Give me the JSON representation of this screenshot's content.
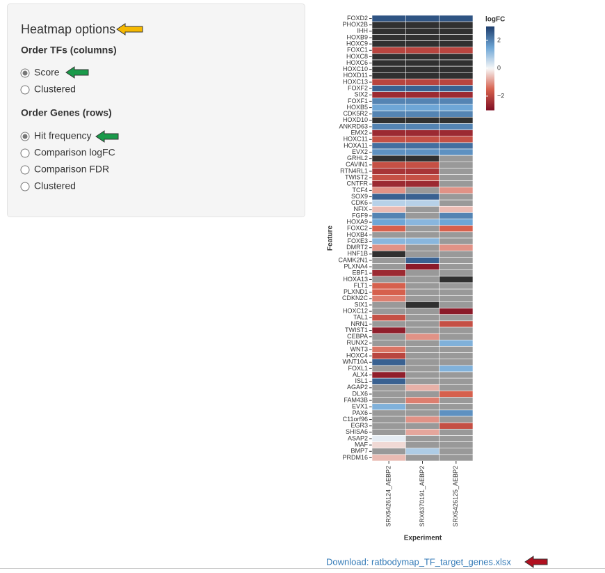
{
  "panel": {
    "title": "Heatmap options",
    "order_tfs": {
      "label": "Order TFs (columns)",
      "options": [
        "Score",
        "Clustered"
      ],
      "selected": 0
    },
    "order_genes": {
      "label": "Order Genes (rows)",
      "options": [
        "Hit frequency",
        "Comparison logFC",
        "Comparison FDR",
        "Clustered"
      ],
      "selected": 0
    }
  },
  "chart_data": {
    "type": "heatmap",
    "x_label": "Experiment",
    "y_label": "Feature",
    "columns": [
      "SRX5426124_AEBP2",
      "SRX6370191_AEBP2",
      "SRX5426125_AEBP2"
    ],
    "rows": [
      "FOXD2",
      "PHOX2B",
      "IHH",
      "HOXB9",
      "HOXC9",
      "FOXC1",
      "HOXC8",
      "HOXC6",
      "HOXC10",
      "HOXD11",
      "HOXC13",
      "FOXF2",
      "SIX2",
      "FOXF1",
      "HOXB5",
      "CDK5R2",
      "HOXD10",
      "ANKRD63",
      "EMX2",
      "HOXC11",
      "HOXA11",
      "EVX2",
      "GRHL2",
      "CAVIN1",
      "RTN4RL1",
      "TWIST2",
      "CNTFR",
      "TCF4",
      "SOX9",
      "CDK6",
      "NFIX",
      "FGF9",
      "HOXA9",
      "FOXC2",
      "HOXB4",
      "FOXE3",
      "DMRT2",
      "HNF1B",
      "CAMK2N1",
      "PLXNA4",
      "EBF1",
      "HOXA13",
      "FLT1",
      "PLXND1",
      "CDKN2C",
      "SIX1",
      "HOXC12",
      "TAL1",
      "NRN1",
      "TWIST1",
      "CEBPA",
      "RUNX2",
      "WNT3",
      "HOXC4",
      "WNT10A",
      "FOXL1",
      "ALX4",
      "ISL1",
      "AGAP2",
      "DLX6",
      "FAM43B",
      "EVX1",
      "PAX6",
      "C11orf96",
      "EGR3",
      "SHISA6",
      "ASAP2",
      "MAF",
      "BMP7",
      "PRDM16"
    ],
    "values": [
      [
        2.7,
        2.7,
        2.7
      ],
      [
        null,
        null,
        null
      ],
      [
        null,
        null,
        null
      ],
      [
        null,
        null,
        null
      ],
      [
        null,
        null,
        null
      ],
      [
        -2,
        -2,
        -2
      ],
      [
        null,
        null,
        null
      ],
      [
        null,
        null,
        null
      ],
      [
        null,
        null,
        null
      ],
      [
        null,
        null,
        null
      ],
      [
        -2,
        -2,
        -2
      ],
      [
        2.5,
        2.5,
        2.5
      ],
      [
        -2.5,
        -2.5,
        -2.5
      ],
      [
        2,
        2,
        2
      ],
      [
        1.5,
        1.5,
        1.5
      ],
      [
        2,
        2,
        2
      ],
      [
        null,
        null,
        null
      ],
      [
        2,
        2,
        2
      ],
      [
        -2.5,
        -2.5,
        -2.5
      ],
      [
        -1.8,
        -1.8,
        -1.8
      ],
      [
        2.3,
        2.3,
        2.3
      ],
      [
        1.8,
        1.8,
        1.8
      ],
      [
        null,
        null,
        null
      ],
      [
        -1.8,
        -1.8,
        null
      ],
      [
        -2.3,
        -2.3,
        null
      ],
      [
        -1.8,
        -1.8,
        null
      ],
      [
        -2.5,
        -2.5,
        null
      ],
      [
        -1,
        null,
        -1
      ],
      [
        2.5,
        2.5,
        null
      ],
      [
        0.7,
        0.7,
        null
      ],
      [
        -0.6,
        null,
        -0.6
      ],
      [
        2,
        null,
        2
      ],
      [
        1.5,
        1.2,
        1.5
      ],
      [
        -1.5,
        null,
        -1.5
      ],
      [
        null,
        null,
        null
      ],
      [
        1.2,
        1.2,
        null
      ],
      [
        -1,
        null,
        -1
      ],
      [
        null,
        null,
        null
      ],
      [
        null,
        2.5,
        null
      ],
      [
        null,
        -2.8,
        null
      ],
      [
        -2.5,
        null,
        null
      ],
      [
        null,
        null,
        null
      ],
      [
        -1.5,
        null,
        null
      ],
      [
        -1.5,
        null,
        null
      ],
      [
        -1.2,
        null,
        null
      ],
      [
        null,
        null,
        null
      ],
      [
        null,
        null,
        -2.8
      ],
      [
        -1.8,
        null,
        null
      ],
      [
        null,
        null,
        -1.8
      ],
      [
        -2.7,
        null,
        null
      ],
      [
        null,
        -1,
        null
      ],
      [
        null,
        null,
        1.3
      ],
      [
        -1.3,
        null,
        null
      ],
      [
        -2,
        null,
        null
      ],
      [
        2.5,
        null,
        null
      ],
      [
        null,
        null,
        1.3
      ],
      [
        -2.7,
        null,
        null
      ],
      [
        2.5,
        null,
        null
      ],
      [
        null,
        -0.7,
        null
      ],
      [
        null,
        null,
        -1.5
      ],
      [
        null,
        -1.2,
        null
      ],
      [
        1.3,
        null,
        null
      ],
      [
        null,
        null,
        1.8
      ],
      [
        null,
        -1,
        null
      ],
      [
        null,
        null,
        -1.8
      ],
      [
        null,
        -0.8,
        null
      ],
      [
        0.2,
        null,
        null
      ],
      [
        -0.3,
        null,
        null
      ],
      [
        null,
        0.8,
        null
      ],
      [
        -0.6,
        null,
        null
      ]
    ],
    "saturated_cells": [
      [
        1,
        0
      ],
      [
        1,
        1
      ],
      [
        1,
        2
      ],
      [
        2,
        0
      ],
      [
        2,
        1
      ],
      [
        2,
        2
      ],
      [
        3,
        0
      ],
      [
        3,
        1
      ],
      [
        3,
        2
      ],
      [
        4,
        0
      ],
      [
        4,
        1
      ],
      [
        4,
        2
      ],
      [
        6,
        0
      ],
      [
        6,
        1
      ],
      [
        6,
        2
      ],
      [
        7,
        0
      ],
      [
        7,
        1
      ],
      [
        7,
        2
      ],
      [
        8,
        0
      ],
      [
        8,
        1
      ],
      [
        8,
        2
      ],
      [
        9,
        0
      ],
      [
        9,
        1
      ],
      [
        9,
        2
      ],
      [
        16,
        0
      ],
      [
        16,
        1
      ],
      [
        16,
        2
      ],
      [
        22,
        0
      ],
      [
        22,
        1
      ],
      [
        37,
        0
      ],
      [
        41,
        2
      ],
      [
        45,
        1
      ]
    ],
    "na_color": "#999999",
    "saturated_color": "#303030",
    "colorscale": [
      [
        -3,
        "#7f0f24"
      ],
      [
        -1.5,
        "#d6604d"
      ],
      [
        0,
        "#f7f7f7"
      ],
      [
        1.5,
        "#6ea6d6"
      ],
      [
        3,
        "#1f3f6e"
      ]
    ],
    "colorbar": {
      "title": "logFC",
      "lim": [
        -3,
        3
      ],
      "ticks": [
        2,
        0,
        {
          "value": -2,
          "label": "−2"
        }
      ]
    }
  },
  "download": {
    "text": "Download: ratbodymap_TF_target_genes.xlsx"
  }
}
